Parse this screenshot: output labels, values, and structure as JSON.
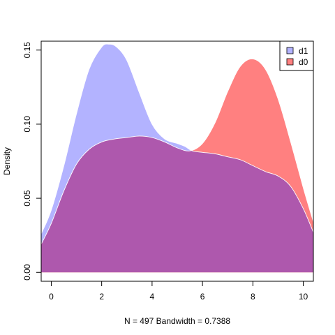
{
  "chart_data": {
    "type": "area",
    "title": "",
    "xlabel": "N = 497   Bandwidth = 0.7388",
    "ylabel": "Density",
    "xlim": [
      -0.4,
      10.4
    ],
    "ylim": [
      -0.006,
      0.156
    ],
    "x_ticks": [
      0,
      2,
      4,
      6,
      8,
      10
    ],
    "y_ticks": [
      0.0,
      0.05,
      0.1,
      0.15
    ],
    "y_tick_labels": [
      "0.00",
      "0.05",
      "0.10",
      "0.15"
    ],
    "grid": false,
    "legend_position": "top-right",
    "baseline": 0,
    "series": [
      {
        "name": "d1",
        "fill": "#b3b3ff",
        "stroke": "#ffffff",
        "x": [
          -0.4,
          0,
          0.5,
          1,
          1.5,
          2,
          2.3,
          2.6,
          3,
          3.5,
          4,
          4.5,
          5,
          5.3,
          5.6,
          6,
          6.5,
          7,
          7.5,
          8,
          8.5,
          9,
          9.5,
          10,
          10.4
        ],
        "y": [
          0.026,
          0.042,
          0.072,
          0.107,
          0.137,
          0.152,
          0.154,
          0.152,
          0.143,
          0.121,
          0.1,
          0.09,
          0.087,
          0.085,
          0.082,
          0.081,
          0.08,
          0.078,
          0.076,
          0.072,
          0.068,
          0.065,
          0.058,
          0.043,
          0.027
        ]
      },
      {
        "name": "d0",
        "fill": "#ff8080",
        "stroke": "#ffffff",
        "x": [
          -0.4,
          0,
          0.5,
          1,
          1.5,
          2,
          2.5,
          3,
          3.5,
          4,
          4.5,
          5,
          5.5,
          6,
          6.5,
          7,
          7.5,
          8,
          8.5,
          9,
          9.5,
          10,
          10.4
        ],
        "y": [
          0.019,
          0.033,
          0.055,
          0.073,
          0.083,
          0.088,
          0.09,
          0.091,
          0.092,
          0.091,
          0.088,
          0.084,
          0.082,
          0.087,
          0.101,
          0.122,
          0.139,
          0.144,
          0.137,
          0.117,
          0.088,
          0.057,
          0.034
        ]
      }
    ],
    "overlap_color": "#ae58ad",
    "legend": [
      {
        "label": "d1",
        "color": "#b3b3ff"
      },
      {
        "label": "d0",
        "color": "#ff8080"
      }
    ]
  }
}
